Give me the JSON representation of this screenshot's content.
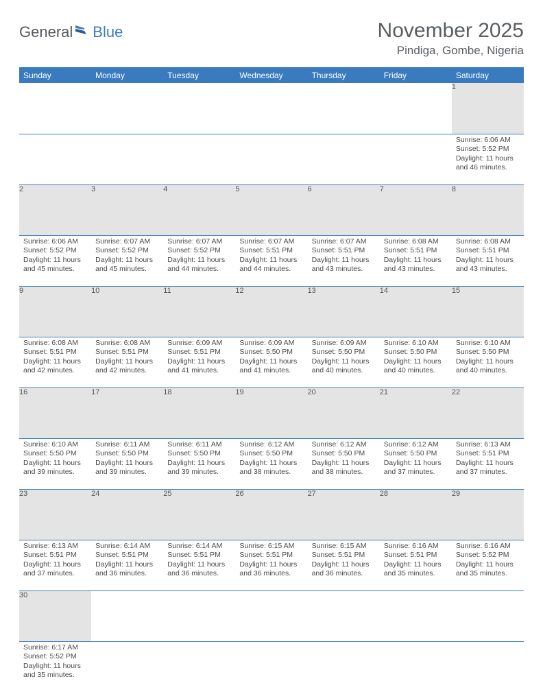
{
  "logo": {
    "text1": "General",
    "text2": "Blue"
  },
  "title": "November 2025",
  "location": "Pindiga, Gombe, Nigeria",
  "colors": {
    "headerBg": "#3a7bbf",
    "dayBg": "#e4e4e4",
    "text": "#4a4a4a"
  },
  "weekdays": [
    "Sunday",
    "Monday",
    "Tuesday",
    "Wednesday",
    "Thursday",
    "Friday",
    "Saturday"
  ],
  "weeks": [
    {
      "nums": [
        "",
        "",
        "",
        "",
        "",
        "",
        "1"
      ],
      "cells": [
        "",
        "",
        "",
        "",
        "",
        "",
        "Sunrise: 6:06 AM\nSunset: 5:52 PM\nDaylight: 11 hours and 46 minutes."
      ]
    },
    {
      "nums": [
        "2",
        "3",
        "4",
        "5",
        "6",
        "7",
        "8"
      ],
      "cells": [
        "Sunrise: 6:06 AM\nSunset: 5:52 PM\nDaylight: 11 hours and 45 minutes.",
        "Sunrise: 6:07 AM\nSunset: 5:52 PM\nDaylight: 11 hours and 45 minutes.",
        "Sunrise: 6:07 AM\nSunset: 5:52 PM\nDaylight: 11 hours and 44 minutes.",
        "Sunrise: 6:07 AM\nSunset: 5:51 PM\nDaylight: 11 hours and 44 minutes.",
        "Sunrise: 6:07 AM\nSunset: 5:51 PM\nDaylight: 11 hours and 43 minutes.",
        "Sunrise: 6:08 AM\nSunset: 5:51 PM\nDaylight: 11 hours and 43 minutes.",
        "Sunrise: 6:08 AM\nSunset: 5:51 PM\nDaylight: 11 hours and 43 minutes."
      ]
    },
    {
      "nums": [
        "9",
        "10",
        "11",
        "12",
        "13",
        "14",
        "15"
      ],
      "cells": [
        "Sunrise: 6:08 AM\nSunset: 5:51 PM\nDaylight: 11 hours and 42 minutes.",
        "Sunrise: 6:08 AM\nSunset: 5:51 PM\nDaylight: 11 hours and 42 minutes.",
        "Sunrise: 6:09 AM\nSunset: 5:51 PM\nDaylight: 11 hours and 41 minutes.",
        "Sunrise: 6:09 AM\nSunset: 5:50 PM\nDaylight: 11 hours and 41 minutes.",
        "Sunrise: 6:09 AM\nSunset: 5:50 PM\nDaylight: 11 hours and 40 minutes.",
        "Sunrise: 6:10 AM\nSunset: 5:50 PM\nDaylight: 11 hours and 40 minutes.",
        "Sunrise: 6:10 AM\nSunset: 5:50 PM\nDaylight: 11 hours and 40 minutes."
      ]
    },
    {
      "nums": [
        "16",
        "17",
        "18",
        "19",
        "20",
        "21",
        "22"
      ],
      "cells": [
        "Sunrise: 6:10 AM\nSunset: 5:50 PM\nDaylight: 11 hours and 39 minutes.",
        "Sunrise: 6:11 AM\nSunset: 5:50 PM\nDaylight: 11 hours and 39 minutes.",
        "Sunrise: 6:11 AM\nSunset: 5:50 PM\nDaylight: 11 hours and 39 minutes.",
        "Sunrise: 6:12 AM\nSunset: 5:50 PM\nDaylight: 11 hours and 38 minutes.",
        "Sunrise: 6:12 AM\nSunset: 5:50 PM\nDaylight: 11 hours and 38 minutes.",
        "Sunrise: 6:12 AM\nSunset: 5:50 PM\nDaylight: 11 hours and 37 minutes.",
        "Sunrise: 6:13 AM\nSunset: 5:51 PM\nDaylight: 11 hours and 37 minutes."
      ]
    },
    {
      "nums": [
        "23",
        "24",
        "25",
        "26",
        "27",
        "28",
        "29"
      ],
      "cells": [
        "Sunrise: 6:13 AM\nSunset: 5:51 PM\nDaylight: 11 hours and 37 minutes.",
        "Sunrise: 6:14 AM\nSunset: 5:51 PM\nDaylight: 11 hours and 36 minutes.",
        "Sunrise: 6:14 AM\nSunset: 5:51 PM\nDaylight: 11 hours and 36 minutes.",
        "Sunrise: 6:15 AM\nSunset: 5:51 PM\nDaylight: 11 hours and 36 minutes.",
        "Sunrise: 6:15 AM\nSunset: 5:51 PM\nDaylight: 11 hours and 36 minutes.",
        "Sunrise: 6:16 AM\nSunset: 5:51 PM\nDaylight: 11 hours and 35 minutes.",
        "Sunrise: 6:16 AM\nSunset: 5:52 PM\nDaylight: 11 hours and 35 minutes."
      ]
    },
    {
      "nums": [
        "30",
        "",
        "",
        "",
        "",
        "",
        ""
      ],
      "cells": [
        "Sunrise: 6:17 AM\nSunset: 5:52 PM\nDaylight: 11 hours and 35 minutes.",
        "",
        "",
        "",
        "",
        "",
        ""
      ]
    }
  ]
}
